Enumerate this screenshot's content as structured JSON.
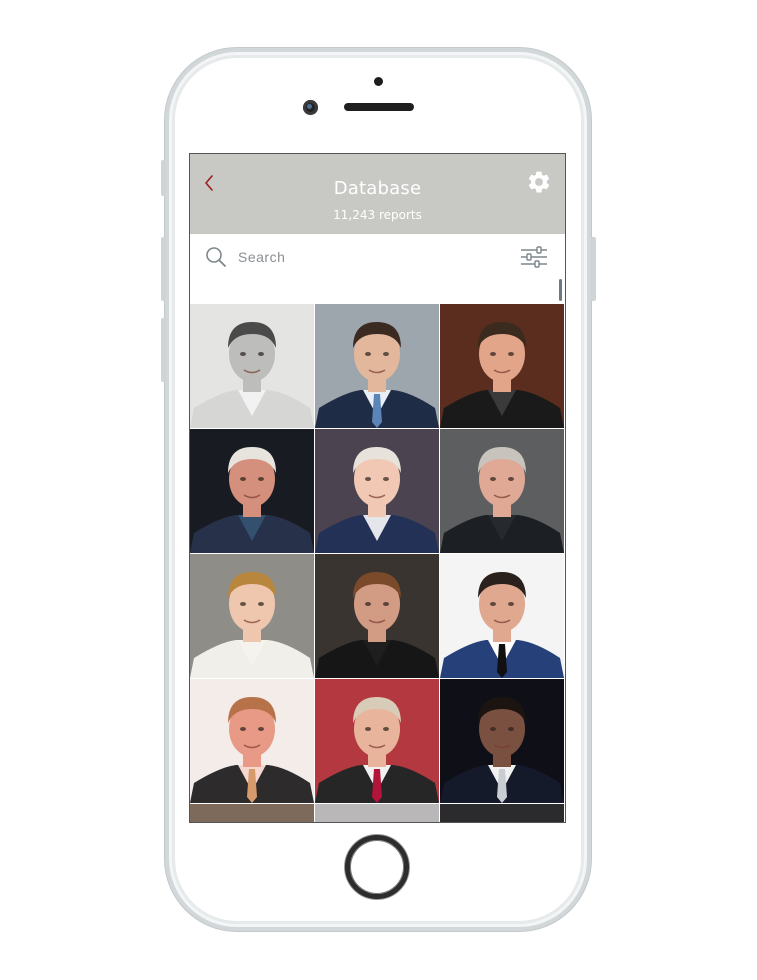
{
  "header": {
    "back_icon": "chevron-left-icon",
    "title": "Database",
    "subtitle": "11,243 reports",
    "settings_icon": "gear-icon",
    "accent_color": "#9c1d24",
    "bar_color": "#c8c9c4"
  },
  "search": {
    "placeholder": "Search",
    "value": "",
    "filter_icon": "sliders-icon"
  },
  "grid": {
    "columns": 3,
    "photos": [
      {
        "bg": "#e4e4e2",
        "skin": "#bdbdbb",
        "hair": "#4a4a4a",
        "suit": "#d6d6d4",
        "shirt": "#f2f2f2",
        "tie": ""
      },
      {
        "bg": "#9da6ad",
        "skin": "#e2b79c",
        "hair": "#3a2a22",
        "suit": "#1e2c45",
        "shirt": "#e9eef4",
        "tie": "#5b85b8"
      },
      {
        "bg": "#5a2d1e",
        "skin": "#e3a589",
        "hair": "#3b2a1e",
        "suit": "#1a1a1a",
        "shirt": "#3a3a3a",
        "tie": ""
      },
      {
        "bg": "#181c22",
        "skin": "#d58f7d",
        "hair": "#e7e4de",
        "suit": "#27324a",
        "shirt": "#33506e",
        "tie": ""
      },
      {
        "bg": "#4b4450",
        "skin": "#f0c8b4",
        "hair": "#e8e2dc",
        "suit": "#243156",
        "shirt": "#e4e6ec",
        "tie": ""
      },
      {
        "bg": "#5d5e60",
        "skin": "#e0a996",
        "hair": "#c9c3bd",
        "suit": "#1c1f24",
        "shirt": "#26292e",
        "tie": ""
      },
      {
        "bg": "#8f8d88",
        "skin": "#efc7ae",
        "hair": "#b9863d",
        "suit": "#f1efea",
        "shirt": "#f5f3ee",
        "tie": ""
      },
      {
        "bg": "#3a3430",
        "skin": "#d29b83",
        "hair": "#7a4a2a",
        "suit": "#161616",
        "shirt": "#1e1e1e",
        "tie": ""
      },
      {
        "bg": "#f4f4f4",
        "skin": "#e0a98f",
        "hair": "#2b211c",
        "suit": "#26407a",
        "shirt": "#ffffff",
        "tie": "#111111"
      },
      {
        "bg": "#f3ece9",
        "skin": "#e89a86",
        "hair": "#b8724a",
        "suit": "#2d2b2c",
        "shirt": "#f6d7cf",
        "tie": "#d79a6a"
      },
      {
        "bg": "#b4383f",
        "skin": "#e8b59c",
        "hair": "#d8cbb7",
        "suit": "#262626",
        "shirt": "#f1f1f1",
        "tie": "#b3143a"
      },
      {
        "bg": "#0f0f18",
        "skin": "#7a5040",
        "hair": "#1b1410",
        "suit": "#141a2a",
        "shirt": "#f0f0f0",
        "tie": "#c9cdd3"
      },
      {
        "bg": "#7d6a5a",
        "skin": "#c99a82",
        "hair": "#3a2a22",
        "suit": "#555",
        "shirt": "#ccc",
        "tie": ""
      },
      {
        "bg": "#b9b7b8",
        "skin": "#d8a890",
        "hair": "#3a3a3a",
        "suit": "#777",
        "shirt": "#ddd",
        "tie": ""
      },
      {
        "bg": "#2b2a2c",
        "skin": "#b9896e",
        "hair": "#2a2220",
        "suit": "#333",
        "shirt": "#aaa",
        "tie": ""
      }
    ]
  }
}
